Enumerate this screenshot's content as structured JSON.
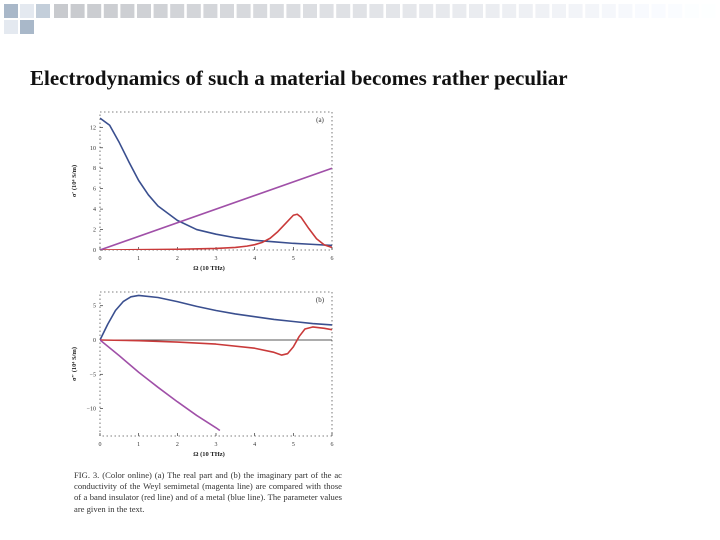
{
  "slide": {
    "title": "Electrodynamics of such a material becomes rather peculiar",
    "colors": {
      "accent_square": "#a9b8c9",
      "square_light": "#e4e9f0"
    }
  },
  "figure_caption": "FIG. 3. (Color online) (a) The real part and (b) the imaginary part of the ac conductivity of the Weyl semimetal (magenta line) are compared with those of a band insulator (red line) and of a metal (blue line). The parameter values are given in the text.",
  "chart_data": [
    {
      "type": "line",
      "panel_label": "(a)",
      "xlabel": "Ω (10 THz)",
      "ylabel": "σ′ (10⁴ S/m)",
      "xlim": [
        0,
        6
      ],
      "ylim": [
        0,
        13.5
      ],
      "x_ticks": [
        "0",
        "1",
        "2",
        "3",
        "4",
        "5",
        "6"
      ],
      "y_ticks": [
        "0",
        "2",
        "4",
        "6",
        "8",
        "10",
        "12"
      ],
      "x_tick_values": [
        0,
        1,
        2,
        3,
        4,
        5,
        6
      ],
      "y_tick_values": [
        0,
        2,
        4,
        6,
        8,
        10,
        12
      ],
      "series": [
        {
          "color": "#3a4f8f",
          "x": [
            0,
            0.25,
            0.5,
            0.75,
            1,
            1.25,
            1.5,
            2,
            2.5,
            3,
            3.5,
            4,
            4.5,
            5,
            5.5,
            6
          ],
          "y": [
            12.9,
            12.2,
            10.5,
            8.6,
            6.8,
            5.4,
            4.3,
            2.9,
            2.0,
            1.55,
            1.2,
            0.95,
            0.8,
            0.65,
            0.55,
            0.45
          ]
        },
        {
          "color": "#c93a3a",
          "x": [
            0,
            1,
            2,
            3,
            3.5,
            3.8,
            4,
            4.2,
            4.4,
            4.6,
            4.8,
            5,
            5.1,
            5.2,
            5.4,
            5.6,
            5.8,
            6
          ],
          "y": [
            0,
            0.03,
            0.07,
            0.15,
            0.25,
            0.38,
            0.52,
            0.75,
            1.15,
            1.8,
            2.6,
            3.4,
            3.5,
            3.2,
            2.1,
            1.1,
            0.5,
            0.25
          ]
        },
        {
          "color": "#a050a8",
          "x": [
            0,
            6
          ],
          "y": [
            0,
            8
          ]
        }
      ]
    },
    {
      "type": "line",
      "panel_label": "(b)",
      "xlabel": "Ω (10 THz)",
      "ylabel": "σ″ (10⁴ S/m)",
      "xlim": [
        0,
        6
      ],
      "ylim": [
        -14,
        7
      ],
      "x_ticks": [
        "0",
        "1",
        "2",
        "3",
        "4",
        "5",
        "6"
      ],
      "y_ticks": [
        "5",
        "0",
        "−5",
        "−10"
      ],
      "x_tick_values": [
        0,
        1,
        2,
        3,
        4,
        5,
        6
      ],
      "y_tick_values": [
        5,
        0,
        -5,
        -10
      ],
      "series": [
        {
          "color": "#3a4f8f",
          "x": [
            0,
            0.2,
            0.4,
            0.6,
            0.8,
            1,
            1.5,
            2,
            2.5,
            3,
            3.5,
            4,
            4.5,
            5,
            5.5,
            6
          ],
          "y": [
            0,
            2.3,
            4.3,
            5.6,
            6.3,
            6.5,
            6.2,
            5.6,
            4.9,
            4.3,
            3.8,
            3.4,
            3.0,
            2.7,
            2.4,
            2.2
          ]
        },
        {
          "color": "#c93a3a",
          "x": [
            0,
            1,
            2,
            3,
            4,
            4.5,
            4.7,
            4.85,
            5.0,
            5.15,
            5.3,
            5.5,
            5.8,
            6
          ],
          "y": [
            0,
            -0.1,
            -0.3,
            -0.6,
            -1.2,
            -1.8,
            -2.2,
            -2.0,
            -1.0,
            0.5,
            1.6,
            1.9,
            1.7,
            1.5
          ]
        },
        {
          "color": "#a050a8",
          "x": [
            0,
            0.5,
            1,
            1.5,
            2,
            2.5,
            3,
            3.1
          ],
          "y": [
            0,
            -2.3,
            -4.7,
            -6.9,
            -9.0,
            -11.0,
            -12.8,
            -13.2
          ]
        }
      ]
    }
  ]
}
